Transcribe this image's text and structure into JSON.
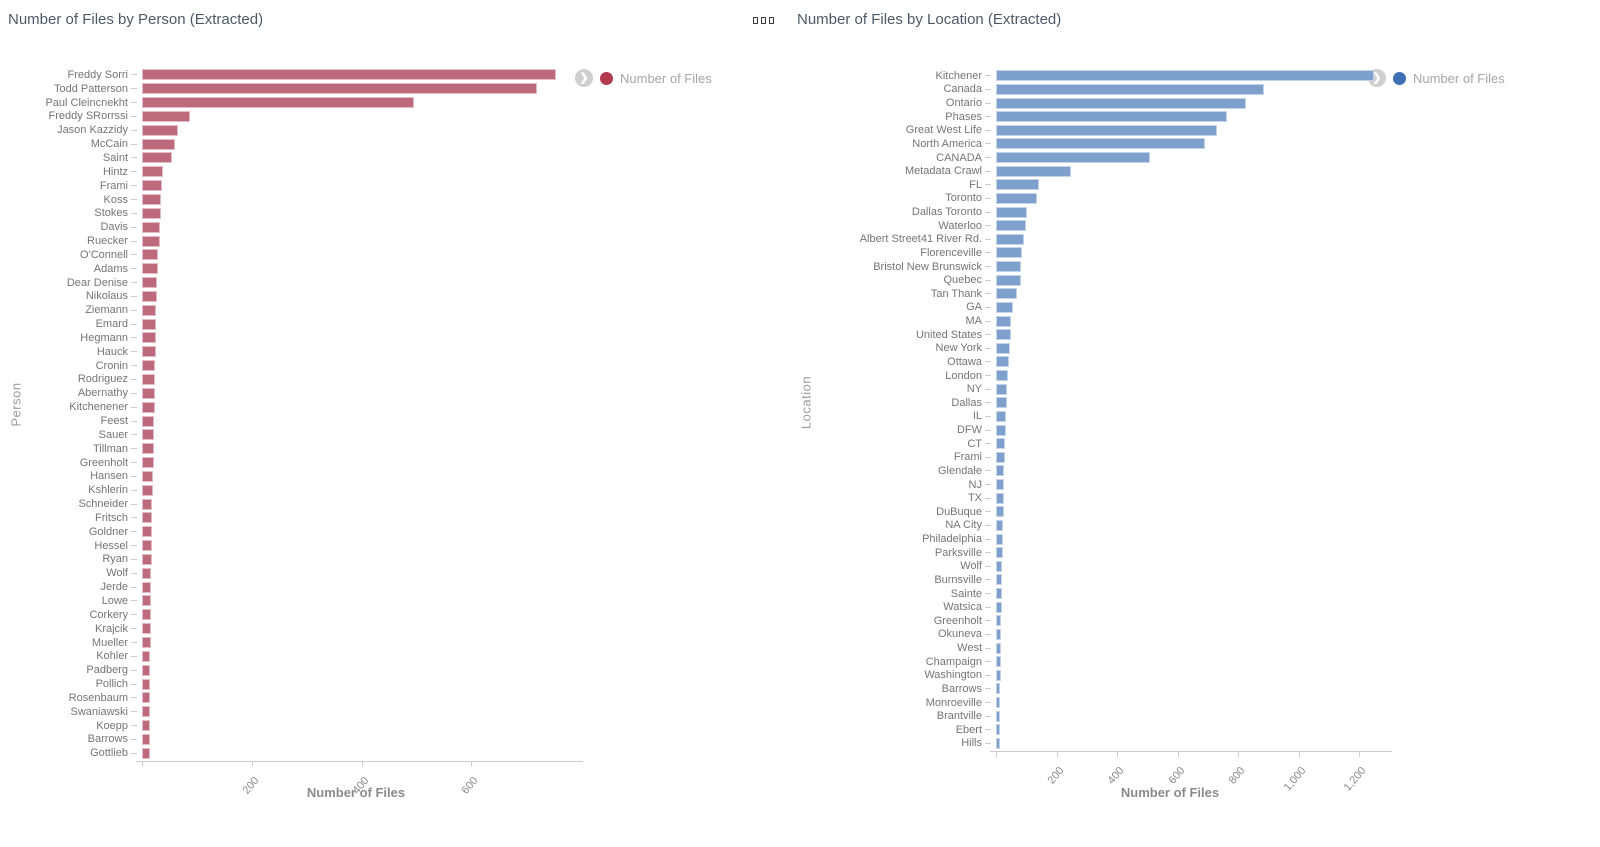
{
  "icons": {
    "panel_handle": "drag-handle-icon",
    "legend_expand": "chevron-right-circle-icon",
    "legend_marker": "series-dot-icon"
  },
  "colors": {
    "left_bar": "#bd6a7d",
    "left_legend_dot": "#b23b52",
    "right_bar": "#7da0cd",
    "right_legend_dot": "#3f6fb5",
    "axis": "#cccccc",
    "title_text": "#4d5a66"
  },
  "chart_data": [
    {
      "type": "bar",
      "orientation": "horizontal",
      "title": "Number of Files by Person (Extracted)",
      "xlabel": "Number of Files",
      "ylabel": "Person",
      "legend_label": "Number of Files",
      "legend_position": "top-right",
      "grid": false,
      "bar_color": "#bd6a7d",
      "legend_dot_color": "#b23b52",
      "xlim": [
        0,
        800
      ],
      "x_tick_values": [
        0,
        200,
        400,
        600
      ],
      "x_tick_labels": [
        "",
        "200",
        "400",
        "600"
      ],
      "categories": [
        "Freddy Sorri",
        "Todd Patterson",
        "Paul Cleincnekht",
        "Freddy SRorrssi",
        "Jason Kazzidy",
        "McCain",
        "Saint",
        "Hintz",
        "Frami",
        "Koss",
        "Stokes",
        "Davis",
        "Ruecker",
        "O'Connell",
        "Adams",
        "Dear Denise",
        "Nikolaus",
        "Ziemann",
        "Emard",
        "Hegmann",
        "Hauck",
        "Cronin",
        "Rodriguez",
        "Abernathy",
        "Kitchenener",
        "Feest",
        "Sauer",
        "Tillman",
        "Greenholt",
        "Hansen",
        "Kshlerin",
        "Schneider",
        "Fritsch",
        "Goldner",
        "Hessel",
        "Ryan",
        "Wolf",
        "Jerde",
        "Lowe",
        "Corkery",
        "Krajcik",
        "Mueller",
        "Kohler",
        "Padberg",
        "Pollich",
        "Rosenbaum",
        "Swaniawski",
        "Koepp",
        "Barrows",
        "Gottlieb"
      ],
      "values": [
        755,
        720,
        495,
        88,
        66,
        60,
        54,
        38,
        36,
        35,
        34,
        33,
        32,
        30,
        29,
        28,
        27,
        26,
        26,
        25,
        25,
        24,
        24,
        23,
        23,
        22,
        22,
        21,
        21,
        20,
        20,
        19,
        19,
        18,
        18,
        18,
        17,
        17,
        17,
        16,
        16,
        16,
        15,
        15,
        15,
        15,
        14,
        14,
        14,
        14
      ]
    },
    {
      "type": "bar",
      "orientation": "horizontal",
      "title": "Number of Files by Location (Extracted)",
      "xlabel": "Number of Files",
      "ylabel": "Location",
      "legend_label": "Number of Files",
      "legend_position": "top-right",
      "grid": false,
      "bar_color": "#7da0cd",
      "legend_dot_color": "#3f6fb5",
      "xlim": [
        0,
        1310
      ],
      "x_tick_values": [
        0,
        200,
        400,
        600,
        800,
        1000,
        1200
      ],
      "x_tick_labels": [
        "",
        "200",
        "400",
        "600",
        "800",
        "1,000",
        "1,200"
      ],
      "categories": [
        "Kitchener",
        "Canada",
        "Ontario",
        "Phases",
        "Great West Life",
        "North America",
        "CANADA",
        "Metadata Crawl",
        "FL",
        "Toronto",
        "Dallas Toronto",
        "Waterloo",
        "Albert Street41 River Rd.",
        "Florenceville",
        "Bristol New Brunswick",
        "Quebec",
        "Tan Thank",
        "GA",
        "MA",
        "United States",
        "New York",
        "Ottawa",
        "London",
        "NY",
        "Dallas",
        "IL",
        "DFW",
        "CT",
        "Frami",
        "Glendale",
        "NJ",
        "TX",
        "DuBuque",
        "NA City",
        "Philadelphia",
        "Parksville",
        "Wolf",
        "Burnsville",
        "Sainte",
        "Watsica",
        "Greenholt",
        "Okuneva",
        "West",
        "Champaign",
        "Washington",
        "Barrows",
        "Monroeville",
        "Brantville",
        "Ebert",
        "Hills"
      ],
      "values": [
        1250,
        885,
        825,
        765,
        730,
        690,
        510,
        247,
        143,
        137,
        102,
        99,
        93,
        86,
        83,
        82,
        69,
        57,
        50,
        49,
        45,
        43,
        40,
        38,
        36,
        34,
        32,
        30,
        29,
        28,
        27,
        26,
        25,
        24,
        23,
        22,
        21,
        20,
        19,
        19,
        18,
        17,
        16,
        16,
        15,
        14,
        14,
        13,
        12,
        12
      ]
    }
  ],
  "legend_expand_glyph": "❯"
}
